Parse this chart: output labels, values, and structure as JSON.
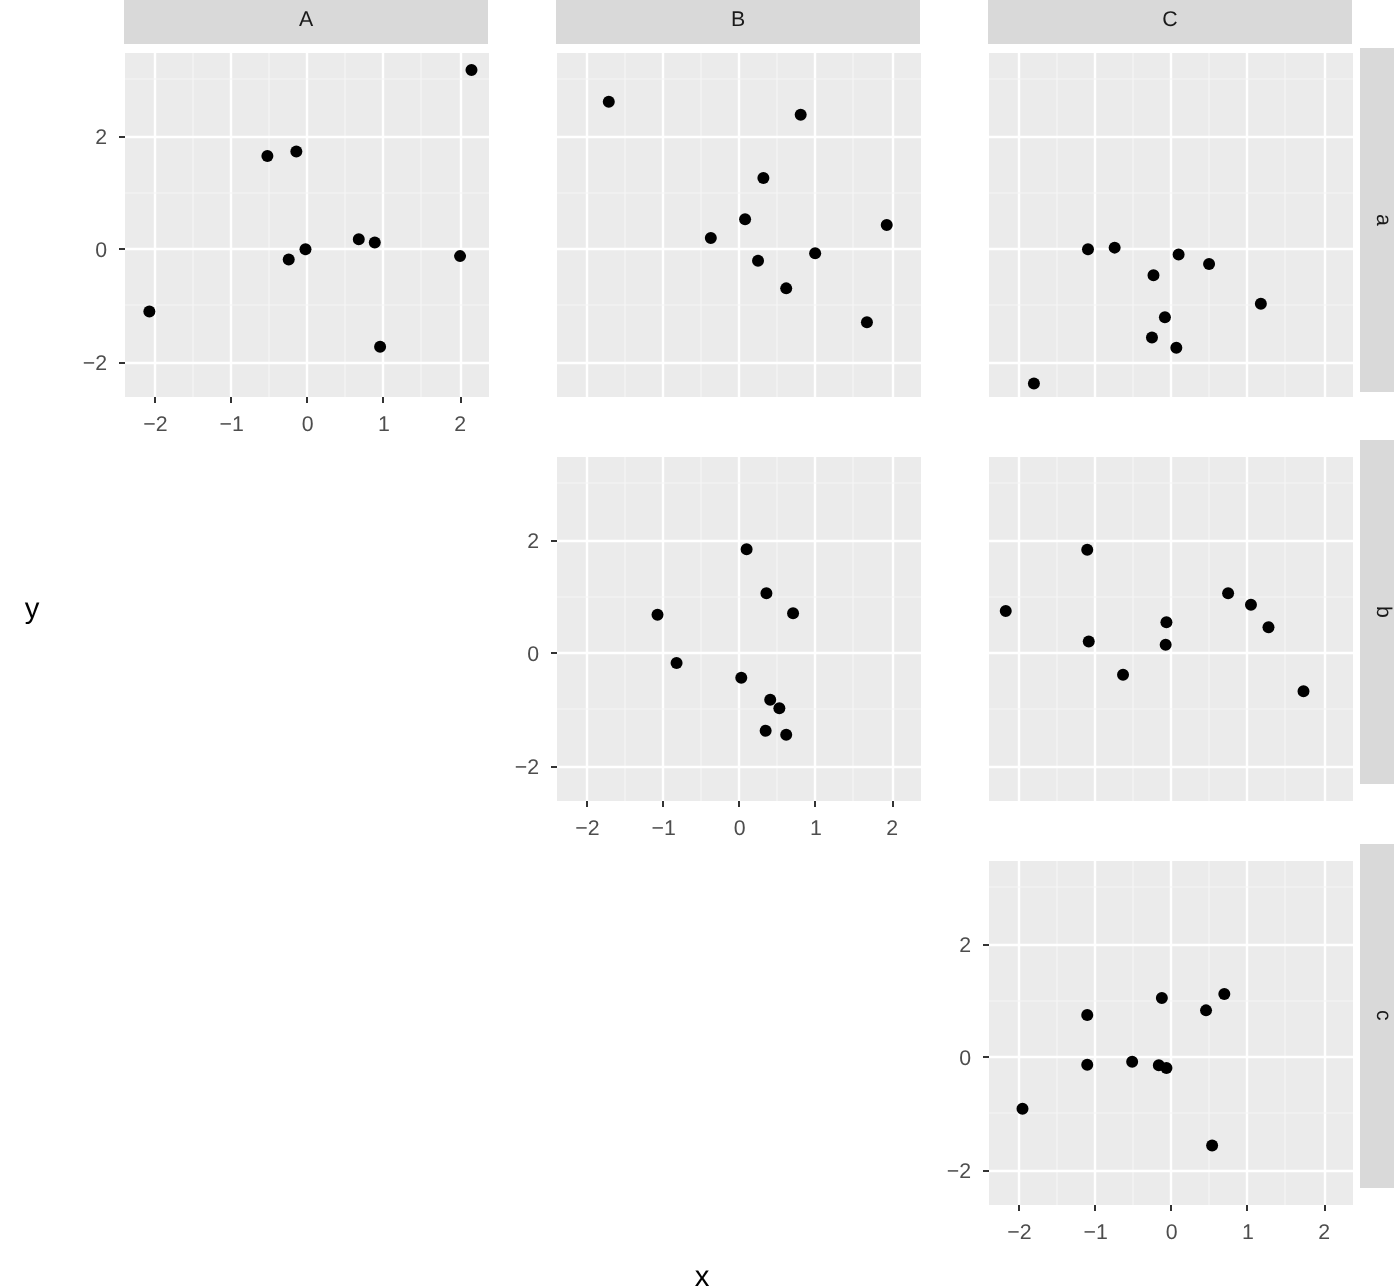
{
  "chart_data": [
    {
      "type": "scatter",
      "title": "A",
      "marker": "circle",
      "grid": true,
      "xlim": [
        -2.4,
        2.38
      ],
      "ylim": [
        -2.61,
        3.47
      ],
      "xticks": [
        -2,
        -1,
        0,
        1,
        2
      ],
      "yticks": [
        -2,
        0,
        2
      ],
      "series": [
        {
          "color": "#000000",
          "x": [
            -2.08,
            -0.53,
            -0.15,
            -0.25,
            -0.03,
            0.67,
            0.88,
            0.95,
            2.0,
            2.15
          ],
          "values": [
            -1.1,
            1.65,
            1.73,
            -0.18,
            0.0,
            0.18,
            0.12,
            -1.72,
            -0.12,
            3.17
          ]
        }
      ]
    },
    {
      "type": "scatter",
      "title": "B",
      "marker": "circle",
      "grid": true,
      "tick_labels": false,
      "xlim": [
        -2.4,
        2.38
      ],
      "ylim": [
        -2.61,
        3.47
      ],
      "xticks": [
        -2,
        -1,
        0,
        1,
        2
      ],
      "yticks": [
        -2,
        0,
        2
      ],
      "series": [
        {
          "color": "#000000",
          "x": [
            -1.72,
            0.8,
            0.31,
            0.07,
            -0.38,
            0.24,
            0.99,
            0.61,
            1.67,
            1.93
          ],
          "values": [
            2.61,
            2.38,
            1.26,
            0.53,
            0.2,
            -0.2,
            -0.07,
            -0.69,
            -1.29,
            0.43
          ]
        }
      ]
    },
    {
      "type": "scatter",
      "title": "C",
      "y2label": "a",
      "marker": "circle",
      "grid": true,
      "tick_labels": false,
      "xlim": [
        -2.4,
        2.38
      ],
      "ylim": [
        -2.61,
        3.47
      ],
      "xticks": [
        -2,
        -1,
        0,
        1,
        2
      ],
      "yticks": [
        -2,
        0,
        2
      ],
      "series": [
        {
          "color": "#000000",
          "x": [
            -1.1,
            -0.75,
            0.09,
            0.49,
            -0.24,
            -0.09,
            -0.26,
            0.06,
            1.17,
            -1.81
          ],
          "values": [
            0.0,
            0.03,
            -0.09,
            -0.26,
            -0.46,
            -1.2,
            -1.56,
            -1.74,
            -0.96,
            -2.37
          ]
        }
      ]
    },
    {
      "type": "scatter",
      "xlabel": "x",
      "ylabel": "y",
      "marker": "circle",
      "grid": true,
      "xlim": [
        -2.4,
        2.38
      ],
      "ylim": [
        -2.61,
        3.47
      ],
      "xticks": [
        -2,
        -1,
        0,
        1,
        2
      ],
      "yticks": [
        -2,
        0,
        2
      ],
      "series": [
        {
          "color": "#000000",
          "x": [
            -1.08,
            -0.83,
            0.09,
            0.35,
            0.7,
            0.02,
            0.4,
            0.52,
            0.34,
            0.61
          ],
          "values": [
            0.68,
            -0.17,
            1.84,
            1.06,
            0.71,
            -0.43,
            -0.82,
            -0.97,
            -1.37,
            -1.44
          ]
        }
      ]
    },
    {
      "type": "scatter",
      "y2label": "b",
      "marker": "circle",
      "grid": true,
      "tick_labels": false,
      "xlim": [
        -2.4,
        2.38
      ],
      "ylim": [
        -2.61,
        3.47
      ],
      "xticks": [
        -2,
        -1,
        0,
        1,
        2
      ],
      "yticks": [
        -2,
        0,
        2
      ],
      "series": [
        {
          "color": "#000000",
          "x": [
            -2.18,
            -1.11,
            -1.09,
            -0.64,
            -0.07,
            -0.08,
            0.74,
            1.04,
            1.27,
            1.73
          ],
          "values": [
            0.75,
            1.83,
            0.21,
            -0.38,
            0.55,
            0.15,
            1.06,
            0.86,
            0.46,
            -0.67
          ]
        }
      ]
    },
    {
      "type": "scatter",
      "y2label": "c",
      "marker": "circle",
      "grid": true,
      "xlim": [
        -2.4,
        2.38
      ],
      "ylim": [
        -2.61,
        3.47
      ],
      "xticks": [
        -2,
        -1,
        0,
        1,
        2
      ],
      "yticks": [
        -2,
        0,
        2
      ],
      "series": [
        {
          "color": "#000000",
          "x": [
            -1.96,
            -1.11,
            -1.11,
            -0.52,
            -0.17,
            -0.07,
            -0.13,
            0.45,
            0.69,
            0.53
          ],
          "values": [
            -0.91,
            0.75,
            -0.13,
            -0.08,
            -0.14,
            -0.19,
            1.05,
            0.83,
            1.12,
            -1.56
          ]
        }
      ]
    }
  ]
}
